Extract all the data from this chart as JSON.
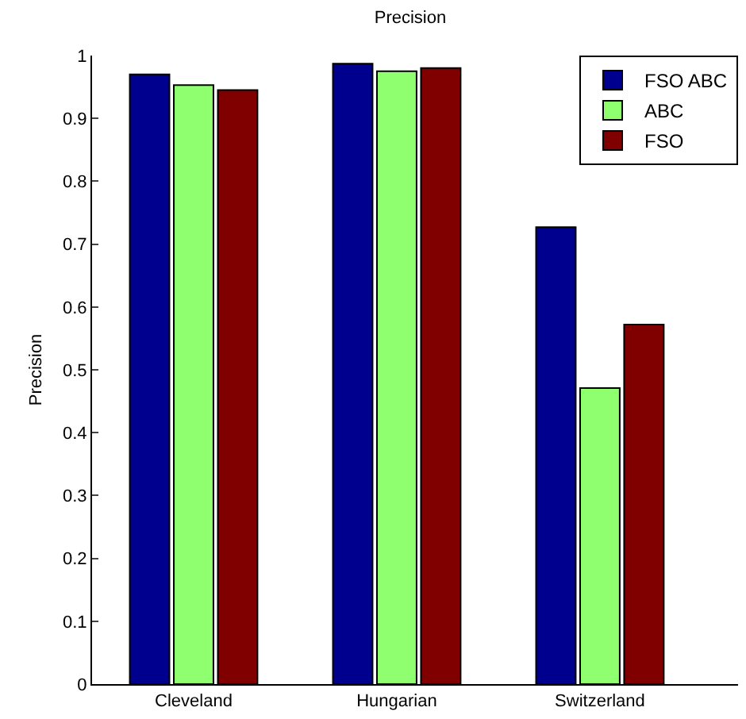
{
  "chart_data": {
    "type": "bar",
    "title": "Precision",
    "ylabel": "Precision",
    "categories": [
      "Cleveland",
      "Hungarian",
      "Switzerland"
    ],
    "series": [
      {
        "name": "FSO ABC",
        "color": "#00008f",
        "values": [
          0.97,
          0.987,
          0.727
        ]
      },
      {
        "name": "ABC",
        "color": "#8fff70",
        "values": [
          0.953,
          0.975,
          0.471
        ]
      },
      {
        "name": "FSO",
        "color": "#800000",
        "values": [
          0.945,
          0.98,
          0.572
        ]
      }
    ],
    "ylim": [
      0,
      1
    ],
    "yticks": [
      0,
      0.1,
      0.2,
      0.3,
      0.4,
      0.5,
      0.6,
      0.7,
      0.8,
      0.9,
      1
    ],
    "grid": false,
    "legend": "top right"
  }
}
